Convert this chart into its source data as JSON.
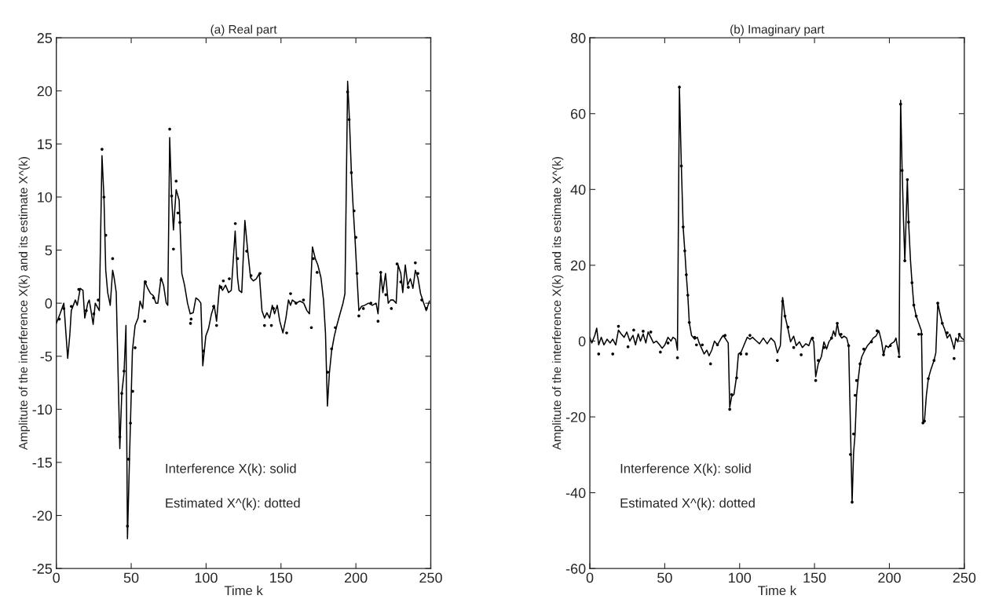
{
  "chart_data": [
    {
      "type": "line",
      "title": "(a) Real part",
      "xlabel": "Time k",
      "ylabel": "Amplitute of the interference X(k) and its estimate X^(k)",
      "xlim": [
        0,
        250
      ],
      "xticks": [
        0,
        50,
        100,
        150,
        200,
        250
      ],
      "ylim": [
        -25,
        25
      ],
      "yticks": [
        -25,
        -20,
        -15,
        -10,
        -5,
        0,
        5,
        10,
        15,
        20,
        25
      ],
      "annotations": [
        "Interference X(k): solid",
        "Estimated X^(k): dotted"
      ],
      "series": [
        {
          "color": "#000000",
          "line_style": "solid",
          "marker": "none",
          "x": [
            0,
            2.5,
            5,
            7.6,
            9,
            10,
            12.7,
            14,
            16,
            17.8,
            19,
            21,
            22,
            24.6,
            26,
            28.7,
            30.5,
            31.8,
            33,
            34.3,
            36,
            37.6,
            38.6,
            40,
            42.4,
            43.7,
            45.2,
            46.5,
            47.5,
            49,
            50.8,
            52.6,
            54.6,
            55.9,
            57.7,
            59,
            61,
            63,
            64.8,
            66.5,
            67.8,
            69.9,
            71.6,
            73.4,
            74.4,
            75.7,
            77,
            78.2,
            80,
            82,
            83.8,
            85.6,
            87.6,
            89.4,
            91.4,
            93.2,
            95,
            96.5,
            97.8,
            99.8,
            101.6,
            103.6,
            105.4,
            107,
            109,
            111,
            113,
            115,
            116.8,
            119.4,
            121,
            122,
            123.8,
            125.9,
            127.6,
            129.7,
            131.5,
            133.5,
            135.5,
            137.3,
            139,
            140.6,
            142.4,
            144.2,
            145.7,
            147.5,
            149.2,
            151.3,
            153.3,
            155,
            156.4,
            157.6,
            160.2,
            162.7,
            165.2,
            167.3,
            169,
            171,
            172.9,
            174.6,
            176.7,
            178.4,
            179.7,
            181,
            182.3,
            183.8,
            185.6,
            187.3,
            189.4,
            191.4,
            192.7,
            194.5,
            195.7,
            197,
            198.3,
            199.5,
            200.8,
            202,
            203.8,
            205.9,
            208.4,
            211,
            213.5,
            214.8,
            216.6,
            218,
            219.8,
            221.6,
            223.2,
            224.9,
            226.9,
            228.2,
            230,
            231.3,
            233,
            234.6,
            236.4,
            238.1,
            239.7,
            241.4,
            243.2,
            245.3,
            247,
            249.1
          ],
          "values": [
            -1.9,
            -1,
            0,
            -5.2,
            -3,
            -0.7,
            0.3,
            -0.2,
            1.4,
            1.2,
            -1.4,
            0,
            0.3,
            -2,
            0,
            -0.7,
            13.9,
            10,
            3.1,
            1,
            -0.2,
            3.1,
            2.4,
            1,
            -13.7,
            -8.5,
            -6.6,
            -2.1,
            -22.2,
            -13.9,
            -4.5,
            -2.1,
            -1.4,
            0.2,
            -0.5,
            2.1,
            1.4,
            0.9,
            0.7,
            0,
            0,
            2.4,
            1.7,
            0,
            -0.2,
            15.6,
            10,
            6.9,
            10.7,
            9.7,
            2.8,
            1.7,
            0,
            -1,
            -0.9,
            0.5,
            0.3,
            0,
            -5.9,
            -3.1,
            -2.4,
            -1,
            -0.2,
            -1.7,
            1.7,
            1.2,
            1.7,
            1,
            1.2,
            6.8,
            2.4,
            1.2,
            1,
            7.8,
            5.2,
            2.4,
            2.1,
            2.3,
            2.8,
            -0.7,
            -1.4,
            -0.9,
            -1.4,
            -0.2,
            -1,
            -0.2,
            -1.7,
            -2.8,
            -1.4,
            0.3,
            -0.2,
            0.3,
            0,
            0.2,
            0,
            -0.7,
            -1,
            5.3,
            4.2,
            3.6,
            2.4,
            0.3,
            -2.8,
            -9.7,
            -6.6,
            -4.5,
            -3.1,
            -2.1,
            -1,
            0,
            0.9,
            20.9,
            17.3,
            12.3,
            8.7,
            5.9,
            2.4,
            -0.7,
            -0.3,
            -0.2,
            0,
            -0.2,
            0,
            -1,
            2.8,
            1,
            2.8,
            0,
            0.3,
            0.3,
            0,
            3.6,
            2.8,
            1,
            3.6,
            1.7,
            2.3,
            1.4,
            3.1,
            2.4,
            0.9,
            0,
            -0.7,
            0.2
          ]
        },
        {
          "type": "scatter",
          "color": "#000000",
          "marker": "circle",
          "x": [
            2,
            5,
            10,
            15,
            20,
            25,
            28,
            30.5,
            31.8,
            33,
            37.6,
            42.4,
            43.7,
            45.2,
            47.5,
            48.2,
            49.5,
            51,
            52.6,
            59,
            59.5,
            65,
            70,
            75.7,
            77,
            78.2,
            80,
            81.2,
            82.5,
            89.6,
            90,
            98.3,
            105,
            107,
            110,
            111.5,
            115.5,
            119.5,
            121,
            127.1,
            130,
            136,
            139,
            143.6,
            145,
            153.8,
            156.4,
            160,
            165,
            170.3,
            171.6,
            174.1,
            181.2,
            183.8,
            186.3,
            194.5,
            195.5,
            197,
            198.8,
            200,
            200.8,
            202,
            205,
            210,
            214.8,
            216.6,
            220,
            223.7,
            227.5,
            230,
            235,
            239.7,
            241.4,
            244,
            247
          ],
          "values": [
            -1.5,
            -0.5,
            -0.3,
            1.3,
            -0.7,
            -1,
            0.3,
            14.5,
            10,
            6.4,
            4.2,
            -12.6,
            -8.5,
            -6.4,
            -21,
            -14.7,
            -11.3,
            -8.3,
            -4.2,
            -1.7,
            2,
            0.5,
            2.2,
            16.4,
            10.1,
            5.1,
            11.5,
            8.5,
            7.6,
            -1.9,
            -1.5,
            -4.5,
            -0.3,
            -2.1,
            1.5,
            2.1,
            2.3,
            7.5,
            4.2,
            4.9,
            2.6,
            2.8,
            -2.1,
            -2.1,
            -0.5,
            -2.8,
            0.9,
            0,
            0.3,
            -2.3,
            4.2,
            2.9,
            -6.5,
            -4.3,
            -2.3,
            19.9,
            17.3,
            12.3,
            8.7,
            6.2,
            2.8,
            -1.2,
            -0.5,
            0,
            -1.7,
            2.9,
            0.8,
            -0.5,
            3.7,
            2,
            1.5,
            3.8,
            2.8,
            0.3,
            -0.5
          ]
        }
      ]
    },
    {
      "type": "line",
      "title": "(b) Imaginary part",
      "xlabel": "Time k",
      "ylabel": "Amplitute of the interference X(k) and its estimate X^(k)",
      "xlim": [
        0,
        250
      ],
      "xticks": [
        0,
        50,
        100,
        150,
        200,
        250
      ],
      "ylim": [
        -60,
        80
      ],
      "yticks": [
        -60,
        -40,
        -20,
        0,
        20,
        40,
        60,
        80
      ],
      "annotations": [
        "Interference X(k): solid",
        "Estimated X^(k): dotted"
      ],
      "series": [
        {
          "color": "#000000",
          "line_style": "solid",
          "marker": "none",
          "x": [
            0,
            1.3,
            3.3,
            4.6,
            5.9,
            7.6,
            9.4,
            11.5,
            13.5,
            15.3,
            17.3,
            19.1,
            20.9,
            22.9,
            24.7,
            26.7,
            28.8,
            30.5,
            32.3,
            33.8,
            35.6,
            37.4,
            38.9,
            40.7,
            42.5,
            44.5,
            46.6,
            48.3,
            50.1,
            52.2,
            54.2,
            55.5,
            57.3,
            58.5,
            59.8,
            61.1,
            62.3,
            63.4,
            64.4,
            65.4,
            66.4,
            67.9,
            70,
            71.8,
            73,
            74.6,
            76.3,
            78.1,
            79.6,
            81.4,
            83.2,
            85.2,
            87.3,
            89,
            90.8,
            92.4,
            93.4,
            94.7,
            96.2,
            98,
            99.2,
            101,
            103,
            105.1,
            106.9,
            108.6,
            110.7,
            113.3,
            115.8,
            118.4,
            120.9,
            123.4,
            125.2,
            127.2,
            128.7,
            130.3,
            132.3,
            134,
            136.1,
            137.8,
            139.9,
            141.9,
            144.2,
            146.2,
            148,
            149.5,
            150.8,
            152.5,
            154.6,
            156.3,
            158.1,
            159.6,
            161.4,
            162.7,
            163.9,
            165.2,
            166.5,
            168.2,
            169.7,
            171.5,
            172.8,
            174,
            175.1,
            176.1,
            177.1,
            178.1,
            179.1,
            180.4,
            181.6,
            183.4,
            185.4,
            187.5,
            189.2,
            191,
            193,
            194.8,
            196.1,
            197.6,
            199.4,
            201.1,
            203.2,
            204.4,
            205.7,
            206.5,
            207.5,
            208.5,
            209.5,
            210.3,
            212,
            212.8,
            214.1,
            215.1,
            216.3,
            217.9,
            219.6,
            221.4,
            222.4,
            223.4,
            224.7,
            226,
            227.7,
            229.8,
            231,
            232.3,
            233.6,
            235.3,
            236.8,
            238.6,
            240.4,
            241.9,
            243.2,
            244.4,
            245.7,
            246.7,
            248.2,
            250
          ],
          "values": [
            1,
            -0.5,
            1.5,
            3.4,
            -1,
            1,
            -1,
            0.5,
            -0.5,
            0.5,
            -1,
            2.9,
            1.9,
            1,
            2.4,
            0,
            1.5,
            -1,
            1.9,
            0,
            1.9,
            -0.5,
            2.4,
            1,
            -0.5,
            0,
            -1,
            -1.9,
            -1,
            1,
            0,
            1,
            0.5,
            -2.4,
            67,
            46.2,
            30.1,
            23.8,
            17.5,
            12.1,
            4.9,
            1.5,
            0.5,
            1,
            -0.5,
            -1.9,
            -3.4,
            -2.4,
            -3.9,
            -2.4,
            0,
            -1,
            0.5,
            1.5,
            0.5,
            -0.5,
            -17.5,
            -14.6,
            -14.1,
            -9.2,
            -3.4,
            -2.9,
            -1,
            1,
            0.5,
            1,
            0.2,
            -0.7,
            0.8,
            -0.7,
            0.8,
            -0.2,
            -3.1,
            -1.2,
            11.5,
            6.6,
            3.2,
            -0.2,
            1.3,
            -1.2,
            -0.2,
            -1.7,
            -0.7,
            -1.2,
            0.8,
            -0.2,
            -9.4,
            -6,
            -4.1,
            -0.2,
            -2.1,
            -0.2,
            0.8,
            2.7,
            1.3,
            4.7,
            1.8,
            0.8,
            1.3,
            0.8,
            -1.2,
            -22.6,
            -42.5,
            -29.4,
            -24.5,
            -14.3,
            -10.4,
            -6,
            -4.1,
            -2.6,
            -1.2,
            -0.2,
            0.8,
            1.3,
            2.7,
            -0.2,
            -3.6,
            -1.2,
            -1.7,
            -0.7,
            -0.2,
            0.8,
            -2.1,
            -3.6,
            63.5,
            45,
            30.9,
            21.2,
            42.6,
            31.4,
            21.2,
            15.4,
            9.5,
            6.6,
            4.7,
            2.7,
            -21.6,
            -21.1,
            -14.3,
            -9.9,
            -7.5,
            -5.1,
            -3.1,
            10,
            7.6,
            4.7,
            3.2,
            0.8,
            1.8,
            -0.2,
            -2.1,
            0.8,
            -0.2,
            1.8,
            0.8,
            0.3
          ]
        },
        {
          "type": "scatter",
          "color": "#000000",
          "marker": "circle",
          "x": [
            5.9,
            15.3,
            19.1,
            25.5,
            29.3,
            35.6,
            40.7,
            47.1,
            52.2,
            58.5,
            59.8,
            61.1,
            62.3,
            63.4,
            64.4,
            65.4,
            66.4,
            70,
            71.2,
            75.1,
            80.6,
            85.2,
            90.3,
            93.4,
            94.7,
            98,
            100.8,
            104.6,
            106.9,
            125.2,
            128.7,
            130.3,
            132.3,
            136.1,
            141.1,
            148.7,
            150.8,
            152.5,
            156.3,
            161.4,
            165.2,
            167.7,
            172.8,
            174,
            175.1,
            176.1,
            177.1,
            178.1,
            180.4,
            182.9,
            188,
            191.8,
            196.1,
            200.6,
            206.5,
            207.5,
            208.5,
            210.3,
            212,
            212.8,
            215.1,
            216.3,
            217.9,
            219.6,
            221.4,
            222.4,
            223.4,
            226,
            229.8,
            232.3,
            235.3,
            238.6,
            243.2,
            246.7
          ],
          "values": [
            -3.4,
            -3.4,
            3.9,
            -1.5,
            2.9,
            2.6,
            2.4,
            -2.9,
            -0.5,
            -4.4,
            67,
            46.2,
            30.1,
            23.8,
            17.5,
            12.1,
            4.9,
            1,
            -1,
            -1,
            -6,
            -1,
            1.5,
            -18,
            -14.1,
            -9.7,
            -3.4,
            -3.4,
            1.5,
            -5.1,
            10.5,
            6.6,
            3.7,
            -1.7,
            -3.6,
            0.8,
            -10.4,
            -5.1,
            -1.7,
            0.8,
            4.7,
            1.8,
            -1.2,
            -29.9,
            -42.5,
            -24.5,
            -14.3,
            -10.4,
            -6,
            -2.1,
            -0.2,
            2.7,
            -3.6,
            -1.2,
            -4.1,
            62.5,
            45,
            21.2,
            42.6,
            31.4,
            15.4,
            9.5,
            6.6,
            1.8,
            1.8,
            -21.6,
            -21.1,
            -9.9,
            -5.1,
            10,
            4.7,
            2.2,
            -4.6,
            1.8
          ]
        }
      ]
    }
  ]
}
